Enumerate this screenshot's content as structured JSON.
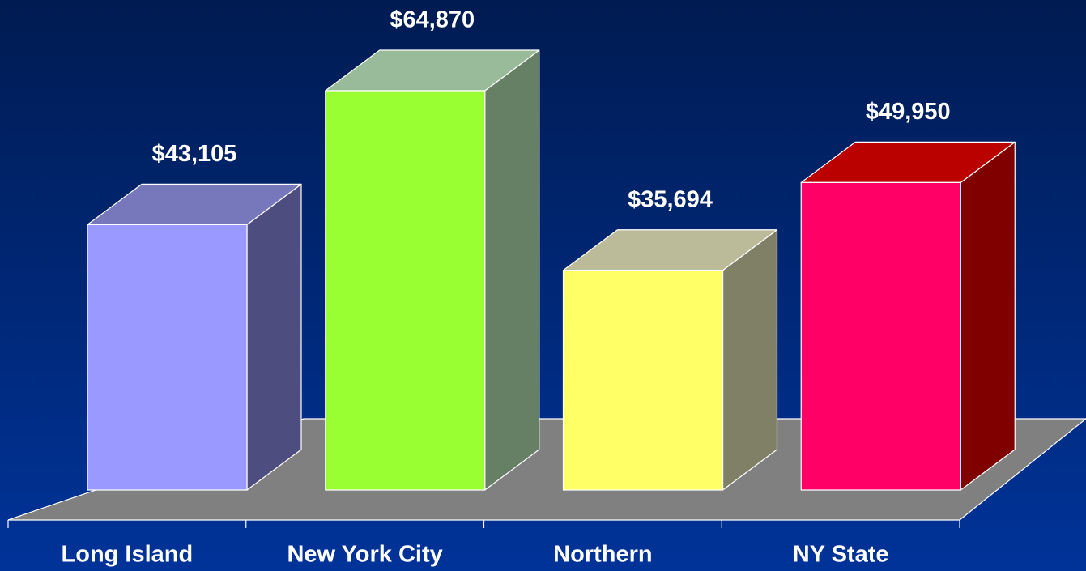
{
  "chart_data": {
    "type": "bar3d",
    "categories": [
      "Long Island",
      "New York City",
      "Northern",
      "NY State"
    ],
    "values": [
      43105,
      64870,
      35694,
      49950
    ],
    "value_labels": [
      "$43,105",
      "$64,870",
      "$35,694",
      "$49,950"
    ],
    "colors": [
      "#9999ff",
      "#99ff33",
      "#ffff66",
      "#ff0066"
    ],
    "top_colors": [
      "#7777bb",
      "#99bb99",
      "#bbbb99",
      "#bb0000"
    ],
    "side_colors": [
      "#4d4d80",
      "#668066",
      "#808066",
      "#800000"
    ]
  }
}
